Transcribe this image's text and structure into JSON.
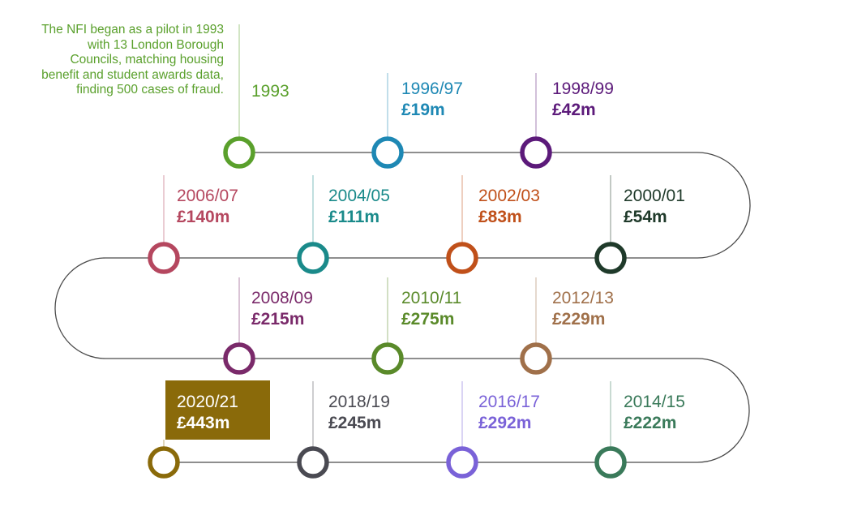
{
  "intro_note": "The NFI began as a pilot in 1993 with 13 London Borough Councils, matching housing benefit and student awards data, finding 500 cases of fraud.",
  "track_color": "#4a4a4a",
  "milestones": [
    {
      "period": "1993",
      "amount": "",
      "color": "#5aa02c"
    },
    {
      "period": "1996/97",
      "amount": "£19m",
      "color": "#1e88b4"
    },
    {
      "period": "1998/99",
      "amount": "£42m",
      "color": "#5c1a7a"
    },
    {
      "period": "2000/01",
      "amount": "£54m",
      "color": "#1f3a2a"
    },
    {
      "period": "2002/03",
      "amount": "£83m",
      "color": "#c0501a"
    },
    {
      "period": "2004/05",
      "amount": "£111m",
      "color": "#1a8a8a"
    },
    {
      "period": "2006/07",
      "amount": "£140m",
      "color": "#b5475f"
    },
    {
      "period": "2008/09",
      "amount": "£215m",
      "color": "#7a2a6a"
    },
    {
      "period": "2010/11",
      "amount": "£275m",
      "color": "#5a8a2a"
    },
    {
      "period": "2012/13",
      "amount": "£229m",
      "color": "#a0704a"
    },
    {
      "period": "2014/15",
      "amount": "£222m",
      "color": "#3a7a5a"
    },
    {
      "period": "2016/17",
      "amount": "£292m",
      "color": "#7a62d8"
    },
    {
      "period": "2018/19",
      "amount": "£245m",
      "color": "#4a4a52"
    },
    {
      "period": "2020/21",
      "amount": "£443m",
      "color": "#8a6a0a",
      "highlighted": true
    }
  ]
}
